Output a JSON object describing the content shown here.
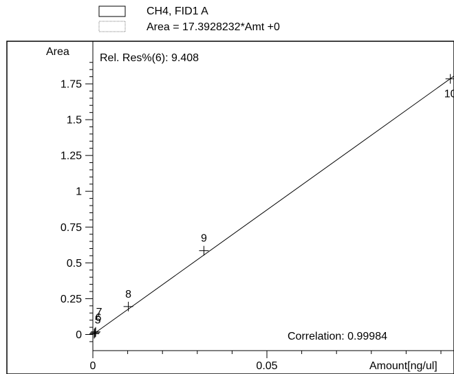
{
  "chart_data": {
    "type": "scatter",
    "legend": {
      "signal": "CH4, FID1 A",
      "equation": "Area = 17.3928232*Amt +0"
    },
    "ylabel": "Area",
    "xlabel": "Amount[ng/ul]",
    "rel_res": "Rel. Res%(6): 9.408",
    "correlation": "Correlation: 0.99984",
    "xlim": [
      0,
      0.1
    ],
    "ylim": [
      -0.1,
      2.0
    ],
    "y_ticks": [
      {
        "value": 0,
        "label": "0"
      },
      {
        "value": 0.25,
        "label": "0.25"
      },
      {
        "value": 0.5,
        "label": "0.5"
      },
      {
        "value": 0.75,
        "label": "0.75"
      },
      {
        "value": 1,
        "label": "1"
      },
      {
        "value": 1.25,
        "label": "1.25"
      },
      {
        "value": 1.5,
        "label": "1.5"
      },
      {
        "value": 1.75,
        "label": "1.75"
      }
    ],
    "x_ticks": [
      {
        "value": 0,
        "label": "0"
      },
      {
        "value": 0.05,
        "label": "0.05"
      }
    ],
    "fit_line": {
      "slope": 17.3928232,
      "intercept": 0
    },
    "points": [
      {
        "label": "5",
        "x": 0.0004,
        "y": 0.005
      },
      {
        "label": "6",
        "x": 0.0006,
        "y": 0.012
      },
      {
        "label": "7",
        "x": 0.0008,
        "y": 0.018
      },
      {
        "label": "8",
        "x": 0.0102,
        "y": 0.195
      },
      {
        "label": "9",
        "x": 0.0319,
        "y": 0.585
      },
      {
        "label": "10",
        "x": 0.1027,
        "y": 1.785
      }
    ]
  }
}
